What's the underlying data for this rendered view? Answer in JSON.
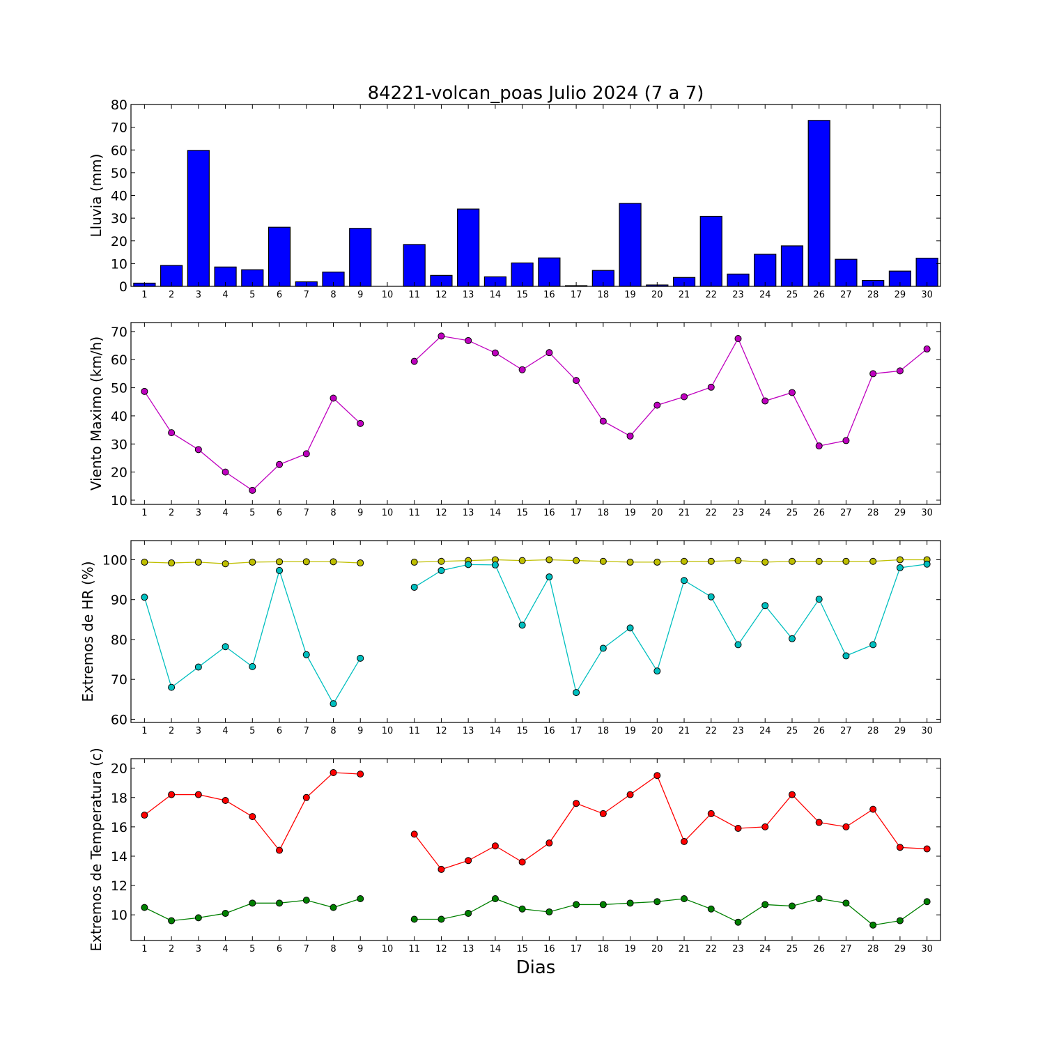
{
  "figure": {
    "title": "84221-volcan_poas Julio 2024  (7 a 7)",
    "xlabel": "Dias"
  },
  "chart_data": [
    {
      "type": "bar",
      "ylabel": "Lluvia (mm)",
      "ylim": [
        0,
        80
      ],
      "yticks": [
        0,
        10,
        20,
        30,
        40,
        50,
        60,
        70,
        80
      ],
      "categories": [
        1,
        2,
        3,
        4,
        5,
        6,
        7,
        8,
        9,
        10,
        11,
        12,
        13,
        14,
        15,
        16,
        17,
        18,
        19,
        20,
        21,
        22,
        23,
        24,
        25,
        26,
        27,
        28,
        29,
        30
      ],
      "values": [
        1.4,
        9.2,
        59.8,
        8.5,
        7.3,
        26.0,
        2.0,
        6.3,
        25.5,
        0,
        18.4,
        4.8,
        34.0,
        4.2,
        10.3,
        12.5,
        0.3,
        7.0,
        36.5,
        0.6,
        3.9,
        30.8,
        5.4,
        14.1,
        17.8,
        73.0,
        11.9,
        2.6,
        6.7,
        12.4
      ],
      "color": "#0000ff"
    },
    {
      "type": "line",
      "ylabel": "Viento Maximo (km/h)",
      "ylim": [
        8.5,
        73.2
      ],
      "yticks": [
        10,
        20,
        30,
        40,
        50,
        60,
        70
      ],
      "x": [
        1,
        2,
        3,
        4,
        5,
        6,
        7,
        8,
        9,
        10,
        11,
        12,
        13,
        14,
        15,
        16,
        17,
        18,
        19,
        20,
        21,
        22,
        23,
        24,
        25,
        26,
        27,
        28,
        29,
        30
      ],
      "series": [
        {
          "color": "#bf00bf",
          "values": [
            48.7,
            34.0,
            28.0,
            20.0,
            13.5,
            22.7,
            26.5,
            46.3,
            37.3,
            null,
            59.4,
            68.4,
            66.8,
            62.4,
            56.4,
            62.5,
            52.6,
            38.1,
            32.8,
            43.8,
            46.8,
            50.2,
            67.5,
            45.3,
            48.3,
            29.3,
            31.2,
            55.0,
            56.0,
            63.8
          ]
        }
      ]
    },
    {
      "type": "line",
      "ylabel": "Extremos de HR (%)",
      "ylim": [
        59.2,
        104.8
      ],
      "yticks": [
        60,
        70,
        80,
        90,
        100
      ],
      "x": [
        1,
        2,
        3,
        4,
        5,
        6,
        7,
        8,
        9,
        10,
        11,
        12,
        13,
        14,
        15,
        16,
        17,
        18,
        19,
        20,
        21,
        22,
        23,
        24,
        25,
        26,
        27,
        28,
        29,
        30
      ],
      "series": [
        {
          "color": "#bfbf00",
          "values": [
            99.4,
            99.2,
            99.4,
            99.0,
            99.4,
            99.5,
            99.5,
            99.5,
            99.2,
            null,
            99.4,
            99.6,
            99.8,
            100.0,
            99.8,
            100.0,
            99.8,
            99.6,
            99.4,
            99.4,
            99.6,
            99.6,
            99.8,
            99.4,
            99.6,
            99.6,
            99.6,
            99.6,
            100.0,
            100.0
          ]
        },
        {
          "color": "#00bfbf",
          "values": [
            90.6,
            68.0,
            73.1,
            78.2,
            73.2,
            97.3,
            76.2,
            63.9,
            75.3,
            null,
            93.1,
            97.3,
            98.8,
            98.7,
            83.6,
            95.7,
            66.7,
            77.8,
            82.9,
            72.1,
            94.8,
            90.7,
            78.7,
            88.5,
            80.2,
            90.1,
            75.9,
            78.7,
            98.0,
            98.9
          ]
        }
      ]
    },
    {
      "type": "line",
      "ylabel": "Extremos de Temperatura (c)",
      "ylim": [
        8.25,
        20.65
      ],
      "yticks": [
        10,
        12,
        14,
        16,
        18,
        20
      ],
      "x": [
        1,
        2,
        3,
        4,
        5,
        6,
        7,
        8,
        9,
        10,
        11,
        12,
        13,
        14,
        15,
        16,
        17,
        18,
        19,
        20,
        21,
        22,
        23,
        24,
        25,
        26,
        27,
        28,
        29,
        30
      ],
      "series": [
        {
          "color": "#ff0000",
          "values": [
            16.8,
            18.2,
            18.2,
            17.8,
            16.7,
            14.4,
            18.0,
            19.7,
            19.6,
            null,
            15.5,
            13.1,
            13.7,
            14.7,
            13.6,
            14.9,
            17.6,
            16.9,
            18.2,
            19.5,
            15.0,
            16.9,
            15.9,
            16.0,
            18.2,
            16.3,
            16.0,
            17.2,
            14.6,
            14.5
          ]
        },
        {
          "color": "#008000",
          "values": [
            10.5,
            9.6,
            9.8,
            10.1,
            10.8,
            10.8,
            11.0,
            10.5,
            11.1,
            null,
            9.7,
            9.7,
            10.1,
            11.1,
            10.4,
            10.2,
            10.7,
            10.7,
            10.8,
            10.9,
            11.1,
            10.4,
            9.5,
            10.7,
            10.6,
            11.1,
            10.8,
            9.3,
            9.6,
            10.9
          ]
        }
      ]
    }
  ]
}
